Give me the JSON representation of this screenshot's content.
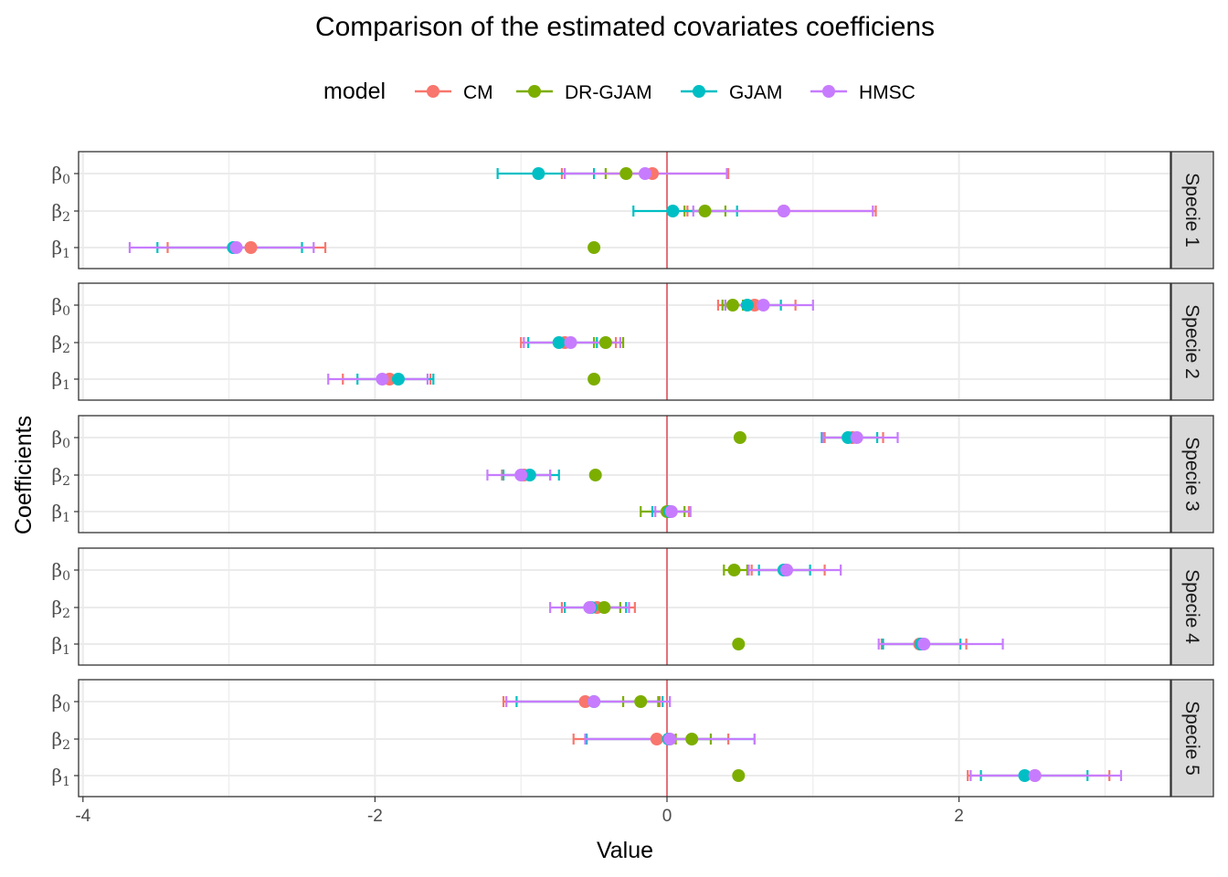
{
  "colors": {
    "CM": "#F8766D",
    "DR-GJAM": "#7CAE00",
    "GJAM": "#00BFC4",
    "HMSC": "#C77CFF",
    "zero_line": "#e0303a",
    "grid": "#ebebeb",
    "strip": "#d9d9d9"
  },
  "chart_data": {
    "type": "scatter",
    "title": "Comparison of the estimated covariates coefficiens",
    "xlabel": "Value",
    "ylabel": "Coefficients",
    "xlim": [
      -4.05,
      3.5
    ],
    "x_ticks": [
      -4,
      -2,
      0,
      2
    ],
    "x_tick_labels": [
      "-4",
      "-2",
      "0",
      "2"
    ],
    "reference_line_x": 0,
    "grid": true,
    "legend": {
      "title": "model",
      "position": "top",
      "entries": [
        "CM",
        "DR-GJAM",
        "GJAM",
        "HMSC"
      ]
    },
    "coefficient_order": [
      "β0",
      "β2",
      "β1"
    ],
    "coefficient_labels": [
      {
        "base": "β",
        "sub": "0"
      },
      {
        "base": "β",
        "sub": "2"
      },
      {
        "base": "β",
        "sub": "1"
      }
    ],
    "panels": [
      {
        "label": "Specie 1",
        "rows": [
          {
            "coef": "β0",
            "estimates": [
              {
                "model": "CM",
                "value": -0.1,
                "lo": -0.72,
                "hi": 0.42
              },
              {
                "model": "DR-GJAM",
                "value": -0.28,
                "lo": -0.42,
                "hi": -0.16
              },
              {
                "model": "GJAM",
                "value": -0.88,
                "lo": -1.16,
                "hi": -0.5
              },
              {
                "model": "HMSC",
                "value": -0.15,
                "lo": -0.7,
                "hi": 0.41
              }
            ]
          },
          {
            "coef": "β2",
            "estimates": [
              {
                "model": "CM",
                "value": 0.8,
                "lo": 0.14,
                "hi": 1.43
              },
              {
                "model": "DR-GJAM",
                "value": 0.26,
                "lo": 0.12,
                "hi": 0.4
              },
              {
                "model": "GJAM",
                "value": 0.04,
                "lo": -0.23,
                "hi": 0.48
              },
              {
                "model": "HMSC",
                "value": 0.8,
                "lo": 0.18,
                "hi": 1.41
              }
            ]
          },
          {
            "coef": "β1",
            "estimates": [
              {
                "model": "CM",
                "value": -2.85,
                "lo": -3.42,
                "hi": -2.34
              },
              {
                "model": "DR-GJAM",
                "value": -0.5,
                "lo": -0.5,
                "hi": -0.5
              },
              {
                "model": "GJAM",
                "value": -2.97,
                "lo": -3.49,
                "hi": -2.5
              },
              {
                "model": "HMSC",
                "value": -2.95,
                "lo": -3.68,
                "hi": -2.42
              }
            ]
          }
        ]
      },
      {
        "label": "Specie 2",
        "rows": [
          {
            "coef": "β0",
            "estimates": [
              {
                "model": "CM",
                "value": 0.6,
                "lo": 0.35,
                "hi": 0.88
              },
              {
                "model": "DR-GJAM",
                "value": 0.45,
                "lo": 0.38,
                "hi": 0.52
              },
              {
                "model": "GJAM",
                "value": 0.55,
                "lo": 0.4,
                "hi": 0.78
              },
              {
                "model": "HMSC",
                "value": 0.66,
                "lo": 0.4,
                "hi": 1.0
              }
            ]
          },
          {
            "coef": "β2",
            "estimates": [
              {
                "model": "CM",
                "value": -0.7,
                "lo": -1.0,
                "hi": -0.35
              },
              {
                "model": "DR-GJAM",
                "value": -0.42,
                "lo": -0.5,
                "hi": -0.3
              },
              {
                "model": "GJAM",
                "value": -0.74,
                "lo": -0.95,
                "hi": -0.48
              },
              {
                "model": "HMSC",
                "value": -0.66,
                "lo": -0.98,
                "hi": -0.32
              }
            ]
          },
          {
            "coef": "β1",
            "estimates": [
              {
                "model": "CM",
                "value": -1.9,
                "lo": -2.22,
                "hi": -1.62
              },
              {
                "model": "DR-GJAM",
                "value": -0.5,
                "lo": -0.5,
                "hi": -0.5
              },
              {
                "model": "GJAM",
                "value": -1.84,
                "lo": -2.12,
                "hi": -1.6
              },
              {
                "model": "HMSC",
                "value": -1.95,
                "lo": -2.32,
                "hi": -1.64
              }
            ]
          }
        ]
      },
      {
        "label": "Specie 3",
        "rows": [
          {
            "coef": "β0",
            "estimates": [
              {
                "model": "CM",
                "value": 1.27,
                "lo": 1.08,
                "hi": 1.48
              },
              {
                "model": "DR-GJAM",
                "value": 0.5,
                "lo": 0.5,
                "hi": 0.5
              },
              {
                "model": "GJAM",
                "value": 1.24,
                "lo": 1.06,
                "hi": 1.44
              },
              {
                "model": "HMSC",
                "value": 1.3,
                "lo": 1.07,
                "hi": 1.58
              }
            ]
          },
          {
            "coef": "β2",
            "estimates": [
              {
                "model": "CM",
                "value": -0.98,
                "lo": -1.13,
                "hi": -0.8
              },
              {
                "model": "DR-GJAM",
                "value": -0.49,
                "lo": -0.49,
                "hi": -0.49
              },
              {
                "model": "GJAM",
                "value": -0.94,
                "lo": -1.12,
                "hi": -0.74
              },
              {
                "model": "HMSC",
                "value": -1.0,
                "lo": -1.23,
                "hi": -0.8
              }
            ]
          },
          {
            "coef": "β1",
            "estimates": [
              {
                "model": "CM",
                "value": 0.02,
                "lo": -0.1,
                "hi": 0.15
              },
              {
                "model": "DR-GJAM",
                "value": 0.0,
                "lo": -0.18,
                "hi": 0.12
              },
              {
                "model": "GJAM",
                "value": 0.02,
                "lo": -0.1,
                "hi": 0.16
              },
              {
                "model": "HMSC",
                "value": 0.03,
                "lo": -0.08,
                "hi": 0.16
              }
            ]
          }
        ]
      },
      {
        "label": "Specie 4",
        "rows": [
          {
            "coef": "β0",
            "estimates": [
              {
                "model": "CM",
                "value": 0.81,
                "lo": 0.58,
                "hi": 1.08
              },
              {
                "model": "DR-GJAM",
                "value": 0.46,
                "lo": 0.39,
                "hi": 0.55
              },
              {
                "model": "GJAM",
                "value": 0.8,
                "lo": 0.63,
                "hi": 0.98
              },
              {
                "model": "HMSC",
                "value": 0.82,
                "lo": 0.56,
                "hi": 1.19
              }
            ]
          },
          {
            "coef": "β2",
            "estimates": [
              {
                "model": "CM",
                "value": -0.48,
                "lo": -0.72,
                "hi": -0.22
              },
              {
                "model": "DR-GJAM",
                "value": -0.43,
                "lo": -0.52,
                "hi": -0.32
              },
              {
                "model": "GJAM",
                "value": -0.52,
                "lo": -0.7,
                "hi": -0.28
              },
              {
                "model": "HMSC",
                "value": -0.53,
                "lo": -0.8,
                "hi": -0.26
              }
            ]
          },
          {
            "coef": "β1",
            "estimates": [
              {
                "model": "CM",
                "value": 1.73,
                "lo": 1.47,
                "hi": 2.05
              },
              {
                "model": "DR-GJAM",
                "value": 0.49,
                "lo": 0.49,
                "hi": 0.49
              },
              {
                "model": "GJAM",
                "value": 1.74,
                "lo": 1.48,
                "hi": 2.01
              },
              {
                "model": "HMSC",
                "value": 1.76,
                "lo": 1.45,
                "hi": 2.3
              }
            ]
          }
        ]
      },
      {
        "label": "Specie 5",
        "rows": [
          {
            "coef": "β0",
            "estimates": [
              {
                "model": "CM",
                "value": -0.56,
                "lo": -1.12,
                "hi": -0.05
              },
              {
                "model": "DR-GJAM",
                "value": -0.18,
                "lo": -0.3,
                "hi": -0.06
              },
              {
                "model": "GJAM",
                "value": -0.5,
                "lo": -1.03,
                "hi": -0.03
              },
              {
                "model": "HMSC",
                "value": -0.5,
                "lo": -1.1,
                "hi": 0.02
              }
            ]
          },
          {
            "coef": "β2",
            "estimates": [
              {
                "model": "CM",
                "value": -0.07,
                "lo": -0.64,
                "hi": 0.42
              },
              {
                "model": "DR-GJAM",
                "value": 0.17,
                "lo": 0.06,
                "hi": 0.3
              },
              {
                "model": "GJAM",
                "value": 0.01,
                "lo": -0.55,
                "hi": 0.6
              },
              {
                "model": "HMSC",
                "value": 0.02,
                "lo": -0.56,
                "hi": 0.6
              }
            ]
          },
          {
            "coef": "β1",
            "estimates": [
              {
                "model": "CM",
                "value": 2.52,
                "lo": 2.06,
                "hi": 3.03
              },
              {
                "model": "DR-GJAM",
                "value": 0.49,
                "lo": 0.49,
                "hi": 0.49
              },
              {
                "model": "GJAM",
                "value": 2.45,
                "lo": 2.15,
                "hi": 2.88
              },
              {
                "model": "HMSC",
                "value": 2.52,
                "lo": 2.08,
                "hi": 3.11
              }
            ]
          }
        ]
      }
    ]
  }
}
